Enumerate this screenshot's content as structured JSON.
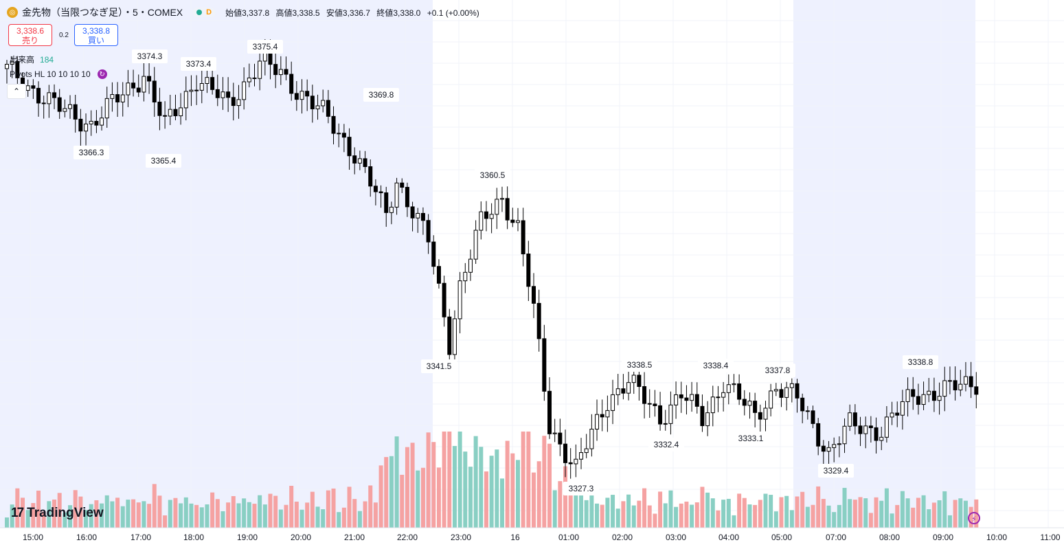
{
  "header": {
    "coin_icon": "gold-coin-icon",
    "symbol": "金先物（当限つなぎ足）・5・COMEX",
    "status_dot_color": "#22ab94",
    "delay_tag": "D",
    "open_label": "始値",
    "open": "3,337.8",
    "high_label": "高値",
    "high": "3,338.5",
    "low_label": "安値",
    "low": "3,336.7",
    "close_label": "終値",
    "close": "3,338.0",
    "change": "+0.1 (+0.00%)"
  },
  "trade": {
    "sell_price": "3,338.6",
    "sell_label": "売り",
    "spread": "0.2",
    "buy_price": "3,338.8",
    "buy_label": "買い"
  },
  "indicators": {
    "volume_label": "出来高",
    "volume_value": "184",
    "pivots_label": "Pivots HL 10 10 10 10",
    "collapse_icon": "chevron-up-icon"
  },
  "branding": {
    "logo": "TradingView"
  },
  "colors": {
    "up": "#ffffff",
    "down": "#000000",
    "vol_up": "#89cfc3",
    "vol_down": "#f5a2a2",
    "session_bg": "#eef1fe"
  },
  "chart_data": {
    "type": "candlestick",
    "x_tick_labels": [
      "15:00",
      "16:00",
      "17:00",
      "18:00",
      "19:00",
      "20:00",
      "21:00",
      "22:00",
      "23:00",
      "16",
      "01:00",
      "02:00",
      "03:00",
      "04:00",
      "05:00",
      "07:00",
      "08:00",
      "09:00",
      "10:00",
      "11:00"
    ],
    "y_visible_range": [
      3322,
      3383
    ],
    "pivot_labels": [
      {
        "label": "3374.3",
        "kind": "high"
      },
      {
        "label": "3373.4",
        "kind": "high"
      },
      {
        "label": "3375.4",
        "kind": "high"
      },
      {
        "label": "3369.8",
        "kind": "high"
      },
      {
        "label": "3366.3",
        "kind": "low"
      },
      {
        "label": "3365.4",
        "kind": "low"
      },
      {
        "label": "3341.5",
        "kind": "low"
      },
      {
        "label": "3360.5",
        "kind": "high"
      },
      {
        "label": "3327.3",
        "kind": "low"
      },
      {
        "label": "3338.5",
        "kind": "high"
      },
      {
        "label": "3338.4",
        "kind": "high"
      },
      {
        "label": "3337.8",
        "kind": "high"
      },
      {
        "label": "3332.4",
        "kind": "low"
      },
      {
        "label": "3333.1",
        "kind": "low"
      },
      {
        "label": "3329.4",
        "kind": "low"
      },
      {
        "label": "3338.8",
        "kind": "high"
      }
    ],
    "close_anchors": [
      {
        "bar": 0,
        "close": 3373.5
      },
      {
        "bar": 10,
        "close": 3369.0
      },
      {
        "bar": 16,
        "close": 3367.3
      },
      {
        "bar": 26,
        "close": 3373.0
      },
      {
        "bar": 30,
        "close": 3367.0
      },
      {
        "bar": 36,
        "close": 3372.5
      },
      {
        "bar": 42,
        "close": 3369.5
      },
      {
        "bar": 48,
        "close": 3374.3
      },
      {
        "bar": 52,
        "close": 3373.0
      },
      {
        "bar": 60,
        "close": 3368.5
      },
      {
        "bar": 66,
        "close": 3364.0
      },
      {
        "bar": 72,
        "close": 3357.0
      },
      {
        "bar": 74,
        "close": 3361.0
      },
      {
        "bar": 80,
        "close": 3354.0
      },
      {
        "bar": 84,
        "close": 3342.5
      },
      {
        "bar": 86,
        "close": 3349.0
      },
      {
        "bar": 90,
        "close": 3356.0
      },
      {
        "bar": 94,
        "close": 3359.0
      },
      {
        "bar": 97,
        "close": 3355.5
      },
      {
        "bar": 100,
        "close": 3346.0
      },
      {
        "bar": 103,
        "close": 3333.0
      },
      {
        "bar": 108,
        "close": 3328.0
      },
      {
        "bar": 114,
        "close": 3336.0
      },
      {
        "bar": 118,
        "close": 3338.0
      },
      {
        "bar": 124,
        "close": 3334.0
      },
      {
        "bar": 128,
        "close": 3336.5
      },
      {
        "bar": 132,
        "close": 3333.8
      },
      {
        "bar": 136,
        "close": 3338.0
      },
      {
        "bar": 142,
        "close": 3334.0
      },
      {
        "bar": 146,
        "close": 3337.5
      },
      {
        "bar": 150,
        "close": 3336.0
      },
      {
        "bar": 154,
        "close": 3332.0
      },
      {
        "bar": 156,
        "close": 3330.0
      },
      {
        "bar": 160,
        "close": 3333.0
      },
      {
        "bar": 166,
        "close": 3332.5
      },
      {
        "bar": 172,
        "close": 3336.5
      },
      {
        "bar": 178,
        "close": 3337.0
      },
      {
        "bar": 184,
        "close": 3338.0
      }
    ],
    "bars": 185
  }
}
